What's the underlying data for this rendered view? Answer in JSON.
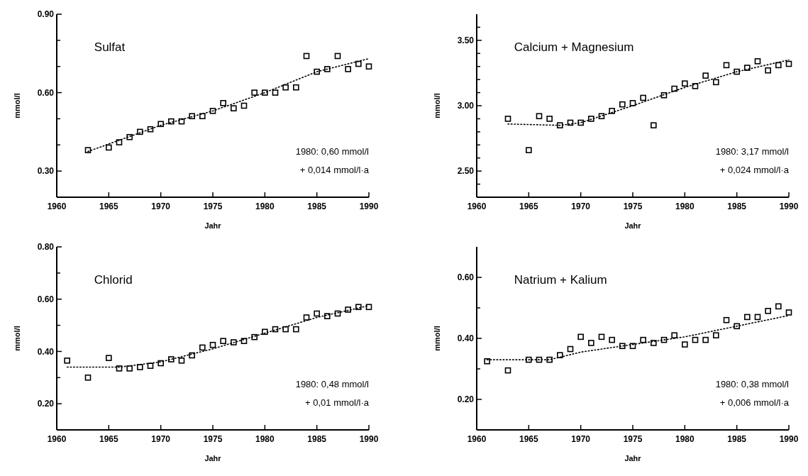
{
  "chart_data": [
    {
      "type": "scatter",
      "title": "Sulfat",
      "xlabel": "Jahr",
      "ylabel": "mmol/l",
      "xlim": [
        1960,
        1990
      ],
      "xticks": [
        1960,
        1965,
        1970,
        1975,
        1980,
        1985,
        1990
      ],
      "ylim": [
        0.2,
        0.9
      ],
      "yticks": [
        {
          "value": 0.3,
          "label": "0.30"
        },
        {
          "value": 0.4,
          "label": null
        },
        {
          "value": 0.5,
          "label": null
        },
        {
          "value": 0.6,
          "label": "0.60"
        },
        {
          "value": 0.7,
          "label": null
        },
        {
          "value": 0.8,
          "label": null
        },
        {
          "value": 0.9,
          "label": "0.90"
        }
      ],
      "annotations": [
        "1980: 0,60 mmol/l",
        "+ 0,014 mmol/l·a"
      ],
      "series": [
        {
          "marker": "square",
          "color": "#000000",
          "x": [
            1963,
            1965,
            1966,
            1967,
            1968,
            1969,
            1970,
            1971,
            1972,
            1973,
            1974,
            1975,
            1976,
            1977,
            1978,
            1979,
            1980,
            1981,
            1982,
            1983,
            1984,
            1985,
            1986,
            1987,
            1988,
            1989,
            1990
          ],
          "values": [
            0.38,
            0.39,
            0.41,
            0.43,
            0.45,
            0.46,
            0.48,
            0.49,
            0.49,
            0.51,
            0.51,
            0.53,
            0.56,
            0.54,
            0.55,
            0.6,
            0.6,
            0.6,
            0.62,
            0.62,
            0.74,
            0.68,
            0.69,
            0.74,
            0.69,
            0.71,
            0.7
          ]
        },
        {
          "type": "line",
          "color": "#000000",
          "line_style": "dotted",
          "x": [
            1963,
            1970,
            1975,
            1980,
            1985,
            1990
          ],
          "values": [
            0.375,
            0.475,
            0.53,
            0.6,
            0.68,
            0.73
          ]
        }
      ]
    },
    {
      "type": "scatter",
      "title": "Calcium + Magnesium",
      "xlabel": "Jahr",
      "ylabel": "mmol/l",
      "xlim": [
        1960,
        1990
      ],
      "xticks": [
        1960,
        1965,
        1970,
        1975,
        1980,
        1985,
        1990
      ],
      "ylim": [
        2.3,
        3.7
      ],
      "yticks": [
        {
          "value": 2.4,
          "label": null
        },
        {
          "value": 2.5,
          "label": "2.50"
        },
        {
          "value": 2.6,
          "label": null
        },
        {
          "value": 2.7,
          "label": null
        },
        {
          "value": 2.8,
          "label": null
        },
        {
          "value": 2.9,
          "label": null
        },
        {
          "value": 3.0,
          "label": "3.00"
        },
        {
          "value": 3.1,
          "label": null
        },
        {
          "value": 3.2,
          "label": null
        },
        {
          "value": 3.3,
          "label": null
        },
        {
          "value": 3.4,
          "label": null
        },
        {
          "value": 3.5,
          "label": "3.50"
        },
        {
          "value": 3.6,
          "label": null
        }
      ],
      "annotations": [
        "1980: 3,17 mmol/l",
        "+ 0,024 mmol/l·a"
      ],
      "series": [
        {
          "marker": "square",
          "color": "#000000",
          "x": [
            1963,
            1965,
            1966,
            1967,
            1968,
            1969,
            1970,
            1971,
            1972,
            1973,
            1974,
            1975,
            1976,
            1977,
            1978,
            1979,
            1980,
            1981,
            1982,
            1983,
            1984,
            1985,
            1986,
            1987,
            1988,
            1989,
            1990
          ],
          "values": [
            2.9,
            2.66,
            2.92,
            2.9,
            2.85,
            2.87,
            2.87,
            2.9,
            2.92,
            2.96,
            3.01,
            3.02,
            3.06,
            2.85,
            3.08,
            3.13,
            3.17,
            3.15,
            3.23,
            3.18,
            3.31,
            3.26,
            3.29,
            3.34,
            3.27,
            3.31,
            3.32
          ]
        },
        {
          "type": "line",
          "color": "#000000",
          "line_style": "dotted",
          "x": [
            1963,
            1968,
            1970,
            1975,
            1980,
            1985,
            1990
          ],
          "values": [
            2.86,
            2.85,
            2.87,
            3.0,
            3.14,
            3.26,
            3.35
          ]
        }
      ]
    },
    {
      "type": "scatter",
      "title": "Chlorid",
      "xlabel": "Jahr",
      "ylabel": "mmol/l",
      "xlim": [
        1960,
        1990
      ],
      "xticks": [
        1960,
        1965,
        1970,
        1975,
        1980,
        1985,
        1990
      ],
      "ylim": [
        0.1,
        0.8
      ],
      "yticks": [
        {
          "value": 0.2,
          "label": "0.20"
        },
        {
          "value": 0.3,
          "label": null
        },
        {
          "value": 0.4,
          "label": "0.40"
        },
        {
          "value": 0.5,
          "label": null
        },
        {
          "value": 0.6,
          "label": "0.60"
        },
        {
          "value": 0.7,
          "label": null
        },
        {
          "value": 0.8,
          "label": "0.80"
        }
      ],
      "annotations": [
        "1980: 0,48 mmol/l",
        "+ 0,01 mmol/l·a"
      ],
      "series": [
        {
          "marker": "square",
          "color": "#000000",
          "x": [
            1961,
            1963,
            1965,
            1966,
            1967,
            1968,
            1969,
            1970,
            1971,
            1972,
            1973,
            1974,
            1975,
            1976,
            1977,
            1978,
            1979,
            1980,
            1981,
            1982,
            1983,
            1984,
            1985,
            1986,
            1987,
            1988,
            1989,
            1990
          ],
          "values": [
            0.365,
            0.3,
            0.375,
            0.335,
            0.335,
            0.34,
            0.345,
            0.355,
            0.37,
            0.365,
            0.385,
            0.415,
            0.425,
            0.44,
            0.435,
            0.44,
            0.455,
            0.475,
            0.485,
            0.485,
            0.485,
            0.53,
            0.545,
            0.535,
            0.545,
            0.56,
            0.57,
            0.57
          ]
        },
        {
          "type": "line",
          "color": "#000000",
          "line_style": "dotted",
          "x": [
            1961,
            1966,
            1970,
            1975,
            1980,
            1985,
            1990
          ],
          "values": [
            0.34,
            0.34,
            0.36,
            0.41,
            0.47,
            0.53,
            0.575
          ]
        }
      ]
    },
    {
      "type": "scatter",
      "title": "Natrium + Kalium",
      "xlabel": "Jahr",
      "ylabel": "mmol/l",
      "xlim": [
        1960,
        1990
      ],
      "xticks": [
        1960,
        1965,
        1970,
        1975,
        1980,
        1985,
        1990
      ],
      "ylim": [
        0.1,
        0.7
      ],
      "yticks": [
        {
          "value": 0.2,
          "label": "0.20"
        },
        {
          "value": 0.3,
          "label": null
        },
        {
          "value": 0.4,
          "label": "0.40"
        },
        {
          "value": 0.5,
          "label": null
        },
        {
          "value": 0.6,
          "label": "0.60"
        }
      ],
      "annotations": [
        "1980: 0,38 mmol/l",
        "+ 0,006 mmol/l·a"
      ],
      "series": [
        {
          "marker": "square",
          "color": "#000000",
          "x": [
            1961,
            1963,
            1965,
            1966,
            1967,
            1968,
            1969,
            1970,
            1971,
            1972,
            1973,
            1974,
            1975,
            1976,
            1977,
            1978,
            1979,
            1980,
            1981,
            1982,
            1983,
            1984,
            1985,
            1986,
            1987,
            1988,
            1989,
            1990
          ],
          "values": [
            0.325,
            0.295,
            0.33,
            0.33,
            0.33,
            0.345,
            0.365,
            0.405,
            0.385,
            0.405,
            0.395,
            0.375,
            0.375,
            0.395,
            0.385,
            0.395,
            0.41,
            0.38,
            0.395,
            0.395,
            0.41,
            0.46,
            0.44,
            0.47,
            0.47,
            0.49,
            0.505,
            0.485
          ]
        },
        {
          "type": "line",
          "color": "#000000",
          "line_style": "dotted",
          "x": [
            1961,
            1967,
            1970,
            1975,
            1980,
            1985,
            1990
          ],
          "values": [
            0.33,
            0.33,
            0.355,
            0.38,
            0.405,
            0.44,
            0.475
          ]
        }
      ]
    }
  ]
}
